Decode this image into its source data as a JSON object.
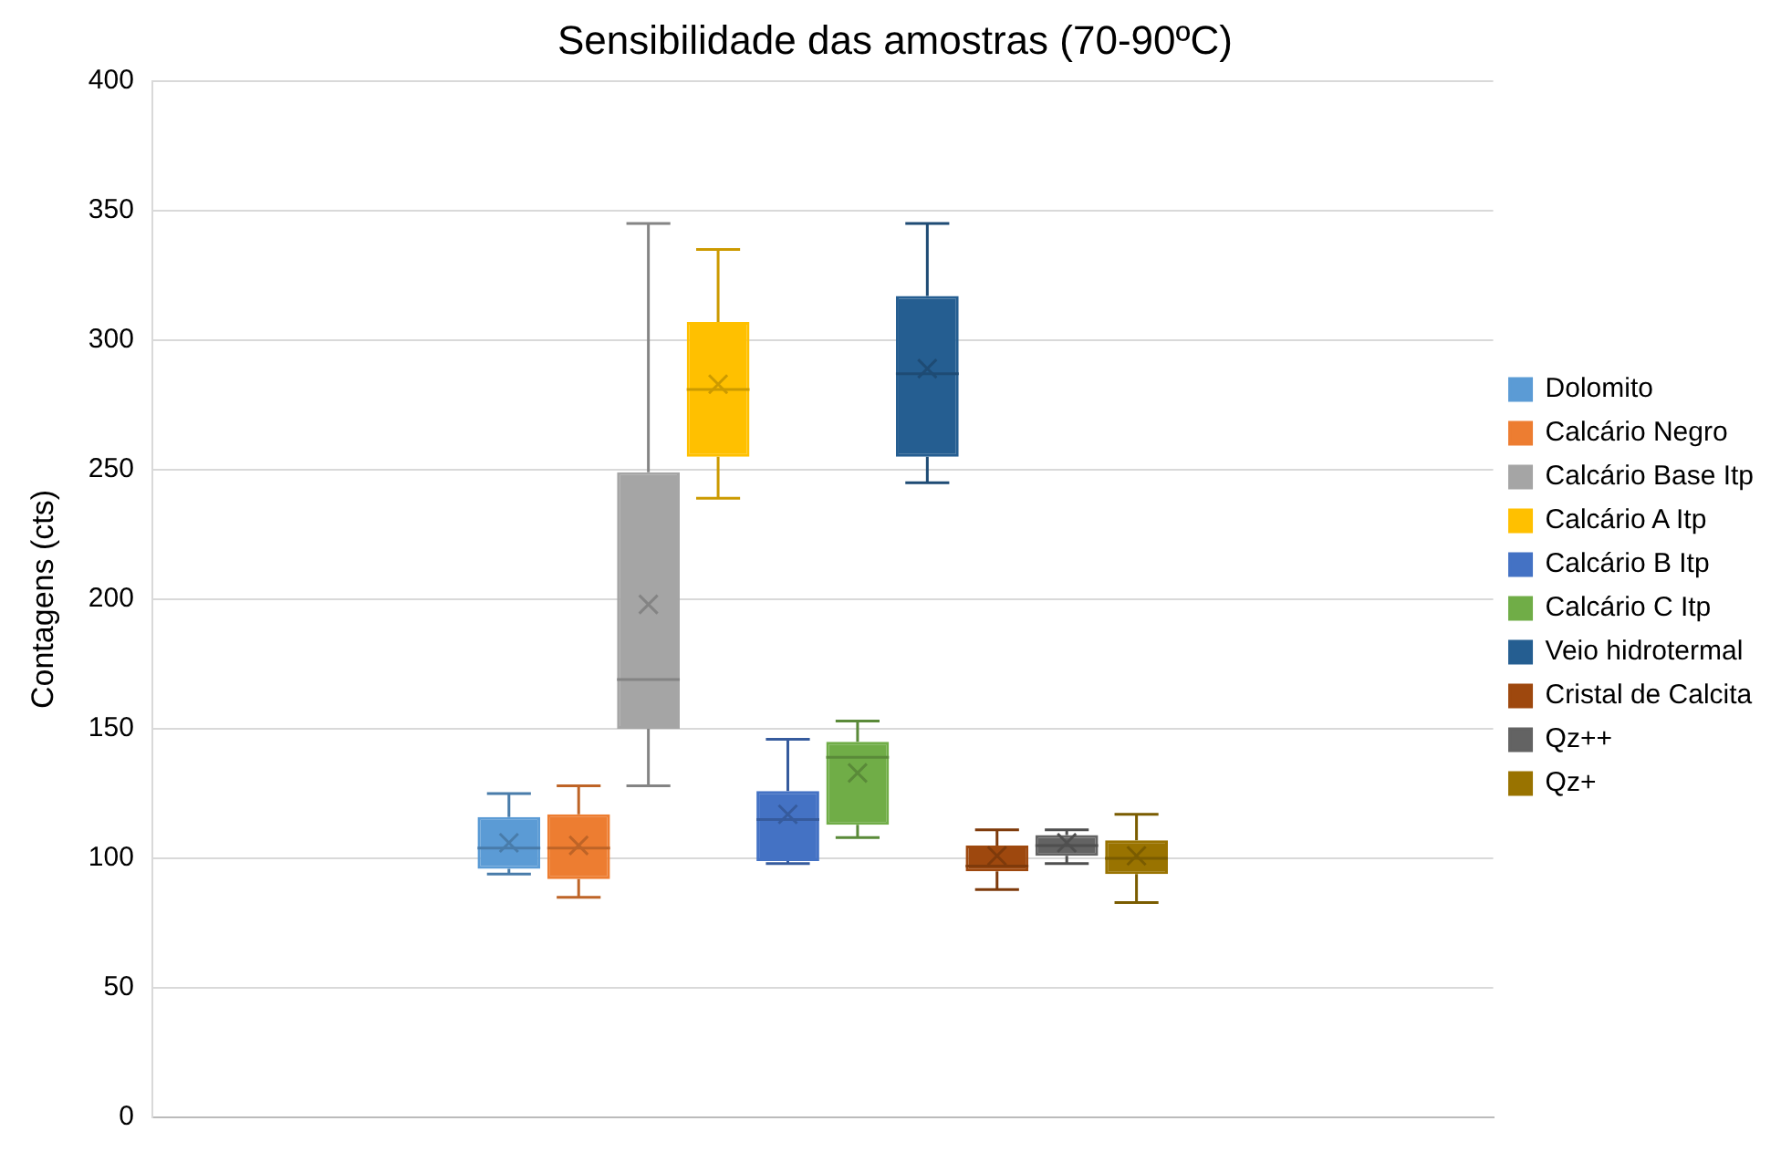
{
  "chart_data": {
    "type": "box",
    "title": "Sensibilidade das amostras (70-90ºC)",
    "ylabel": "Contagens (cts)",
    "categories": [
      null
    ],
    "series": [
      {
        "name": "Dolomito",
        "color": "#5b9bd5",
        "boxes": [
          {
            "low": 94,
            "q1": 96,
            "median": 104,
            "q3": 116,
            "high": 125,
            "mean": 106
          }
        ]
      },
      {
        "name": "Calcário Negro",
        "color": "#ed7d31",
        "boxes": [
          {
            "low": 85,
            "q1": 92,
            "median": 104,
            "q3": 117,
            "high": 128,
            "mean": 105
          }
        ]
      },
      {
        "name": "Calcário Base Itp",
        "color": "#a5a5a5",
        "boxes": [
          {
            "low": 128,
            "q1": 150,
            "median": 169,
            "q3": 249,
            "high": 345,
            "mean": 198
          }
        ]
      },
      {
        "name": "Calcário A Itp",
        "color": "#ffc000",
        "boxes": [
          {
            "low": 239,
            "q1": 255,
            "median": 281,
            "q3": 307,
            "high": 335,
            "mean": 283
          }
        ]
      },
      {
        "name": "Calcário B Itp",
        "color": "#4472c4",
        "boxes": [
          {
            "low": 98,
            "q1": 99,
            "median": 115,
            "q3": 126,
            "high": 146,
            "mean": 117
          }
        ]
      },
      {
        "name": "Calcário C Itp",
        "color": "#70ad47",
        "boxes": [
          {
            "low": 108,
            "q1": 113,
            "median": 139,
            "q3": 145,
            "high": 153,
            "mean": 133
          }
        ]
      },
      {
        "name": "Veio hidrotermal",
        "color": "#255e91",
        "boxes": [
          {
            "low": 245,
            "q1": 255,
            "median": 287,
            "q3": 317,
            "high": 345,
            "mean": 289
          }
        ]
      },
      {
        "name": "Cristal de Calcita",
        "color": "#9e480e",
        "boxes": [
          {
            "low": 88,
            "q1": 95,
            "median": 97,
            "q3": 105,
            "high": 111,
            "mean": 101
          }
        ]
      },
      {
        "name": "Qz++",
        "color": "#636363",
        "boxes": [
          {
            "low": 98,
            "q1": 101,
            "median": 105,
            "q3": 109,
            "high": 111,
            "mean": 106
          }
        ]
      },
      {
        "name": "Qz+",
        "color": "#997300",
        "boxes": [
          {
            "low": 83,
            "q1": 94,
            "median": 100,
            "q3": 107,
            "high": 117,
            "mean": 101
          }
        ]
      }
    ],
    "ylim": [
      0,
      400
    ],
    "yticks": [
      0,
      50,
      100,
      150,
      200,
      250,
      300,
      350,
      400
    ],
    "grid": "y",
    "legend": "right"
  }
}
